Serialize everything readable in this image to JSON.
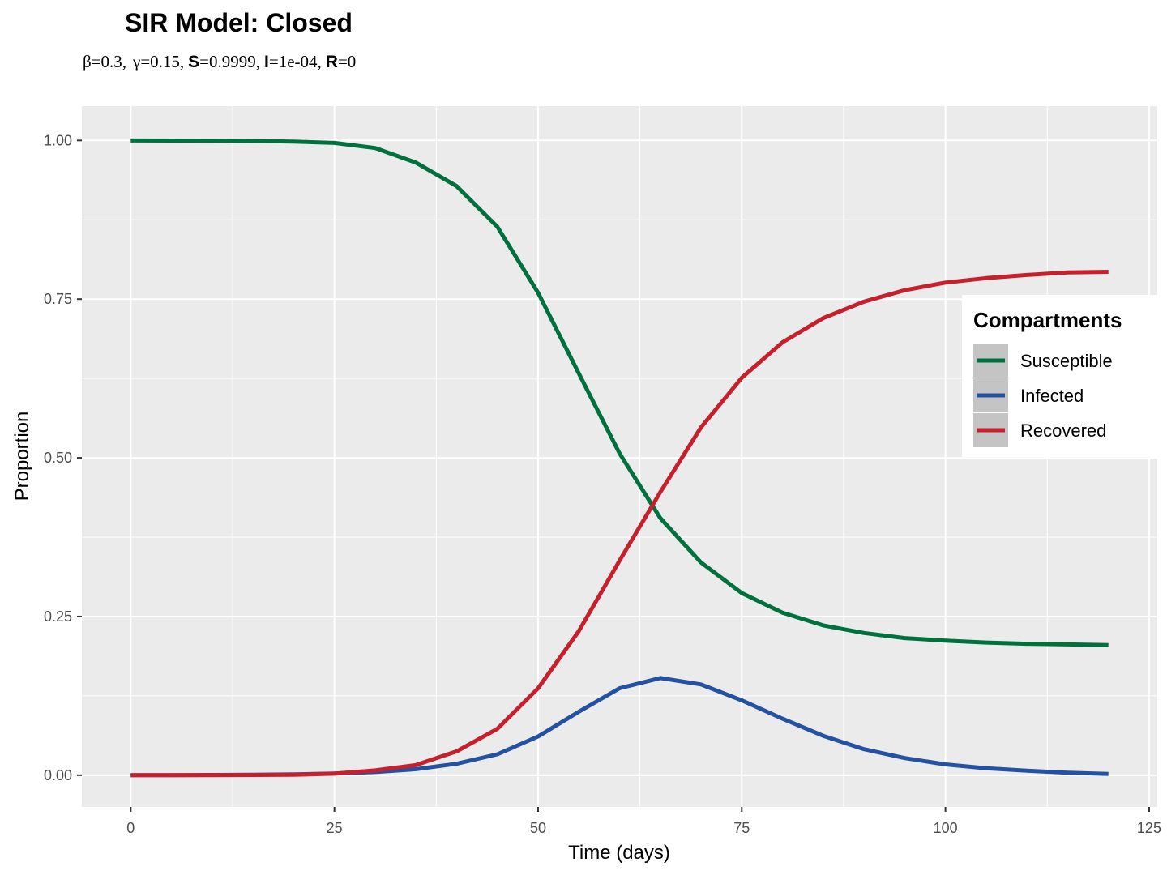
{
  "chart_data": {
    "type": "line",
    "title": "SIR Model: Closed",
    "subtitle": {
      "beta_symbol": "β",
      "beta_value": "=0.3,",
      "gamma_symbol": "γ",
      "gamma_value": "=0.15,",
      "s_label": "S",
      "s_value": "=0.9999,",
      "i_label": "I",
      "i_value": "=1e-04,",
      "r_label": "R",
      "r_value": "=0"
    },
    "xlabel": "Time (days)",
    "ylabel": "Proportion",
    "xlim": [
      -6,
      126
    ],
    "ylim": [
      -0.05,
      1.054
    ],
    "x_ticks": [
      0,
      25,
      50,
      75,
      100,
      125
    ],
    "x_tick_labels": [
      "0",
      "25",
      "50",
      "75",
      "100",
      "125"
    ],
    "y_ticks": [
      0,
      0.25,
      0.5,
      0.75,
      1.0
    ],
    "y_tick_labels": [
      "0.00",
      "0.25",
      "0.50",
      "0.75",
      "1.00"
    ],
    "grid": true,
    "legend": {
      "title": "Compartments",
      "position": "right"
    },
    "x": [
      0,
      5,
      10,
      15,
      20,
      25,
      30,
      35,
      40,
      45,
      50,
      55,
      60,
      65,
      70,
      75,
      80,
      85,
      90,
      95,
      100,
      105,
      110,
      115,
      120
    ],
    "series": [
      {
        "name": "Susceptible",
        "color": "#00703c",
        "values": [
          0.9999,
          0.9998,
          0.9996,
          0.9991,
          0.9982,
          0.996,
          0.988,
          0.965,
          0.928,
          0.864,
          0.76,
          0.633,
          0.507,
          0.405,
          0.335,
          0.287,
          0.256,
          0.236,
          0.224,
          0.216,
          0.212,
          0.209,
          0.207,
          0.206,
          0.205
        ]
      },
      {
        "name": "Infected",
        "color": "#2451a0",
        "values": [
          0.0001,
          0.0002,
          0.0004,
          0.0007,
          0.0013,
          0.0026,
          0.005,
          0.0095,
          0.018,
          0.033,
          0.061,
          0.1,
          0.137,
          0.153,
          0.143,
          0.118,
          0.089,
          0.062,
          0.041,
          0.027,
          0.017,
          0.011,
          0.007,
          0.004,
          0.002
        ]
      },
      {
        "name": "Recovered",
        "color": "#c4202e",
        "values": [
          0.0,
          0.0001,
          0.0002,
          0.0004,
          0.0008,
          0.0024,
          0.0075,
          0.016,
          0.0375,
          0.073,
          0.137,
          0.227,
          0.338,
          0.446,
          0.548,
          0.626,
          0.682,
          0.72,
          0.746,
          0.764,
          0.776,
          0.783,
          0.788,
          0.792,
          0.793
        ]
      }
    ]
  }
}
